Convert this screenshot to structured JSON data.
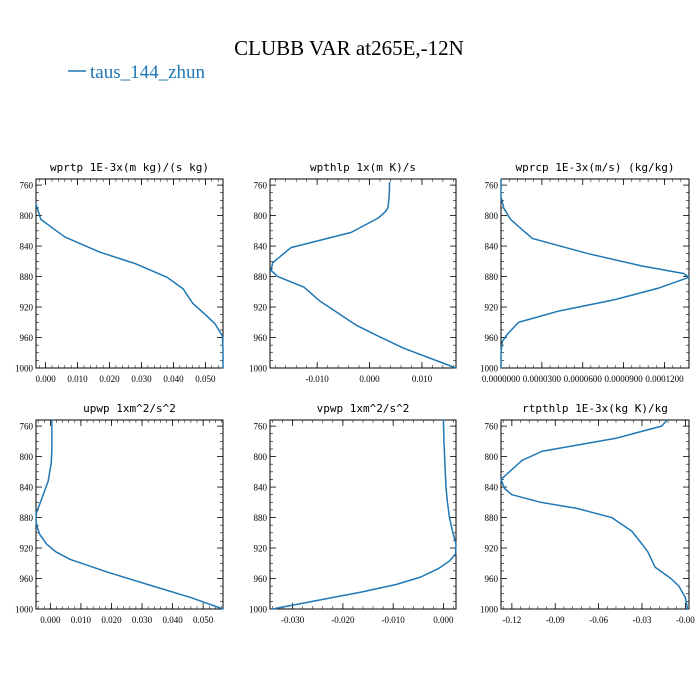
{
  "figure": {
    "title": "CLUBB VAR at265E,-12N",
    "legend": [
      {
        "name": "taus_144_zhun",
        "color": "#1f77b4"
      }
    ]
  },
  "chart_data": [
    {
      "type": "line",
      "title": "wprtp  1E-3x(m kg)/(s kg)",
      "xlim": [
        -0.003,
        0.0555
      ],
      "ylim": [
        1000,
        752
      ],
      "xticks": [
        0.0,
        0.01,
        0.02,
        0.03,
        0.04,
        0.05
      ],
      "xticklabels": [
        "0.000",
        "0.010",
        "0.020",
        "0.030",
        "0.040",
        "0.050"
      ],
      "yticks": [
        760,
        800,
        840,
        880,
        920,
        960,
        1000
      ],
      "series": [
        {
          "x": [
            -0.003,
            -0.0015,
            0.006,
            0.017,
            0.028,
            0.038,
            0.043,
            0.046,
            0.05,
            0.053,
            0.0553,
            0.0555,
            0.0555
          ],
          "y": [
            785,
            805,
            828,
            848,
            863,
            881,
            896,
            915,
            930,
            942,
            958,
            975,
            1000
          ]
        }
      ]
    },
    {
      "type": "line",
      "title": "wpthlp  1x(m K)/s",
      "xlim": [
        -0.019,
        0.0165
      ],
      "ylim": [
        1000,
        752
      ],
      "xticks": [
        -0.01,
        0.0,
        0.01
      ],
      "xticklabels": [
        "-0.010",
        "0.000",
        "0.010"
      ],
      "yticks": [
        760,
        800,
        840,
        880,
        920,
        960,
        1000
      ],
      "series": [
        {
          "x": [
            0.0038,
            0.0038,
            0.0037,
            0.0035,
            0.003,
            0.0017,
            -0.0035,
            -0.015,
            -0.0185,
            -0.0188,
            -0.0175,
            -0.0125,
            -0.0095,
            -0.006,
            -0.0025,
            0.001,
            0.0065,
            0.0165
          ],
          "y": [
            757,
            765,
            778,
            790,
            795,
            803,
            822,
            842,
            862,
            872,
            880,
            894,
            912,
            928,
            944,
            956,
            974,
            1000
          ]
        }
      ]
    },
    {
      "type": "line",
      "title": "wprcp  1E-3x(m/s) (kg/kg)",
      "xlim": [
        0.0,
        0.000138
      ],
      "ylim": [
        1000,
        752
      ],
      "xticks": [
        0.0,
        3e-05,
        6e-05,
        9e-05,
        0.00012
      ],
      "xticklabels": [
        "0.0000000",
        "0.0000300",
        "0.0000600",
        "0.0000900",
        "0.0001200"
      ],
      "yticks": [
        760,
        800,
        840,
        880,
        920,
        960,
        1000
      ],
      "series": [
        {
          "x": [
            0.0,
            0.0,
            2e-06,
            7e-06,
            2.3e-05,
            6.4e-05,
            0.000103,
            0.000134,
            0.000138,
            0.000116,
            8.2e-05,
            4.3e-05,
            1.3e-05,
            5e-06,
            1e-06,
            0.0,
            0.0
          ],
          "y": [
            752,
            775,
            790,
            805,
            830,
            850,
            866,
            876,
            881,
            895,
            911,
            925,
            940,
            955,
            965,
            980,
            1000
          ]
        }
      ]
    },
    {
      "type": "line",
      "title": "upwp  1xm^2/s^2",
      "xlim": [
        -0.0047,
        0.0565
      ],
      "ylim": [
        1000,
        752
      ],
      "xticks": [
        0.0,
        0.01,
        0.02,
        0.03,
        0.04,
        0.05
      ],
      "xticklabels": [
        "0.000",
        "0.010",
        "0.020",
        "0.030",
        "0.040",
        "0.050"
      ],
      "yticks": [
        760,
        800,
        840,
        880,
        920,
        960,
        1000
      ],
      "series": [
        {
          "x": [
            0.0005,
            0.0005,
            0.0003,
            -0.0007,
            -0.0027,
            -0.0045,
            -0.0047,
            -0.0045,
            -0.0035,
            -0.0012,
            0.0018,
            0.0065,
            0.019,
            0.032,
            0.046,
            0.0565
          ],
          "y": [
            752,
            790,
            808,
            832,
            854,
            873,
            882,
            890,
            902,
            915,
            925,
            935,
            952,
            968,
            985,
            1000
          ]
        }
      ]
    },
    {
      "type": "line",
      "title": "vpwp  1xm^2/s^2",
      "xlim": [
        -0.0345,
        0.0025
      ],
      "ylim": [
        1000,
        752
      ],
      "xticks": [
        -0.03,
        -0.02,
        -0.01,
        0.0
      ],
      "xticklabels": [
        "-0.030",
        "-0.020",
        "-0.010",
        "0.000"
      ],
      "yticks": [
        760,
        800,
        840,
        880,
        920,
        960,
        1000
      ],
      "series": [
        {
          "x": [
            0.0,
            0.0001,
            0.0003,
            0.0005,
            0.0008,
            0.0012,
            0.0018,
            0.0025,
            0.0024,
            0.0012,
            -0.001,
            -0.0045,
            -0.0095,
            -0.0165,
            -0.0245,
            -0.034
          ],
          "y": [
            752,
            780,
            810,
            840,
            860,
            880,
            898,
            915,
            928,
            937,
            947,
            958,
            968,
            978,
            988,
            1000
          ]
        }
      ]
    },
    {
      "type": "line",
      "title": "rtpthlp  1E-3x(kg K)/kg",
      "xlim": [
        -0.1275,
        0.0025
      ],
      "ylim": [
        1000,
        752
      ],
      "xticks": [
        -0.12,
        -0.09,
        -0.06,
        -0.03,
        0.0
      ],
      "xticklabels": [
        "-0.12",
        "-0.09",
        "-0.06",
        "-0.03",
        "-0.00"
      ],
      "yticks": [
        760,
        800,
        840,
        880,
        920,
        960,
        1000
      ],
      "series": [
        {
          "x": [
            -0.0125,
            -0.0165,
            -0.048,
            -0.099,
            -0.113,
            -0.1275,
            -0.125,
            -0.12,
            -0.1,
            -0.075,
            -0.051,
            -0.037,
            -0.0295,
            -0.026,
            -0.021,
            -0.01,
            -0.0045,
            0.0,
            0.0015
          ],
          "y": [
            752,
            760,
            776,
            793,
            805,
            830,
            842,
            850,
            860,
            868,
            880,
            898,
            916,
            925,
            945,
            960,
            970,
            985,
            1000
          ]
        }
      ]
    }
  ]
}
